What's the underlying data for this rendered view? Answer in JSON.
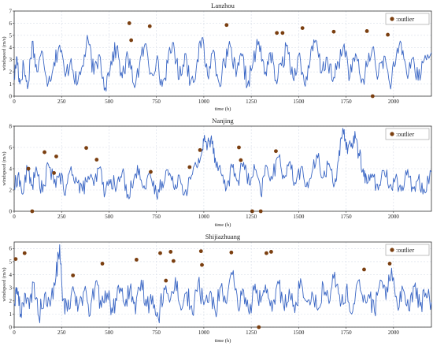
{
  "chart_data": [
    {
      "type": "line",
      "title": "Lanzhou",
      "xlabel": "time (h)",
      "ylabel": "windspeed (m/s)",
      "xlim": [
        0,
        2200
      ],
      "ylim": [
        0,
        7
      ],
      "xticks": [
        0,
        250,
        500,
        750,
        1000,
        1250,
        1500,
        1750,
        2000
      ],
      "yticks": [
        0,
        1,
        2,
        3,
        4,
        5,
        6,
        7
      ],
      "grid": true,
      "legend": {
        "position": "top-right",
        "label": ":outlier"
      },
      "series_color": "#3a66c4",
      "outlier_color": "#7b3f10",
      "keypoints": [
        [
          0,
          1.5
        ],
        [
          15,
          3.2
        ],
        [
          30,
          1.0
        ],
        [
          50,
          2.6
        ],
        [
          70,
          0.6
        ],
        [
          95,
          4.5
        ],
        [
          120,
          2.0
        ],
        [
          150,
          3.6
        ],
        [
          180,
          1.1
        ],
        [
          210,
          2.8
        ],
        [
          240,
          4.2
        ],
        [
          270,
          1.6
        ],
        [
          300,
          3.1
        ],
        [
          330,
          0.9
        ],
        [
          360,
          2.5
        ],
        [
          390,
          4.6
        ],
        [
          420,
          1.8
        ],
        [
          450,
          3.4
        ],
        [
          480,
          0.7
        ],
        [
          510,
          2.9
        ],
        [
          540,
          4.0
        ],
        [
          570,
          1.5
        ],
        [
          600,
          3.3
        ],
        [
          630,
          1.0
        ],
        [
          660,
          2.4
        ],
        [
          690,
          4.3
        ],
        [
          720,
          1.9
        ],
        [
          750,
          3.0
        ],
        [
          780,
          0.8
        ],
        [
          810,
          2.7
        ],
        [
          840,
          4.4
        ],
        [
          870,
          1.4
        ],
        [
          900,
          3.5
        ],
        [
          930,
          1.2
        ],
        [
          960,
          2.3
        ],
        [
          990,
          4.8
        ],
        [
          1020,
          1.7
        ],
        [
          1050,
          3.8
        ],
        [
          1080,
          1.1
        ],
        [
          1110,
          2.6
        ],
        [
          1140,
          4.1
        ],
        [
          1170,
          1.6
        ],
        [
          1200,
          3.3
        ],
        [
          1230,
          0.9
        ],
        [
          1260,
          2.8
        ],
        [
          1290,
          4.5
        ],
        [
          1320,
          1.8
        ],
        [
          1350,
          3.6
        ],
        [
          1380,
          1.3
        ],
        [
          1410,
          2.5
        ],
        [
          1440,
          4.2
        ],
        [
          1470,
          1.5
        ],
        [
          1500,
          3.4
        ],
        [
          1530,
          1.0
        ],
        [
          1560,
          2.9
        ],
        [
          1590,
          4.6
        ],
        [
          1620,
          1.9
        ],
        [
          1650,
          3.2
        ],
        [
          1680,
          1.2
        ],
        [
          1710,
          2.7
        ],
        [
          1740,
          4.3
        ],
        [
          1770,
          1.6
        ],
        [
          1800,
          3.5
        ],
        [
          1830,
          1.1
        ],
        [
          1860,
          2.4
        ],
        [
          1890,
          4.0
        ],
        [
          1920,
          1.7
        ],
        [
          1950,
          3.3
        ],
        [
          1980,
          1.0
        ],
        [
          2010,
          2.6
        ],
        [
          2040,
          4.4
        ],
        [
          2070,
          1.8
        ],
        [
          2100,
          3.1
        ],
        [
          2130,
          1.3
        ],
        [
          2160,
          2.9
        ],
        [
          2200,
          3.6
        ]
      ],
      "outliers": [
        [
          607,
          6.0
        ],
        [
          617,
          4.6
        ],
        [
          715,
          5.75
        ],
        [
          1120,
          5.85
        ],
        [
          1385,
          5.2
        ],
        [
          1415,
          5.2
        ],
        [
          1520,
          5.6
        ],
        [
          1685,
          5.3
        ],
        [
          1860,
          5.35
        ],
        [
          1890,
          0.0
        ],
        [
          1970,
          5.05
        ]
      ]
    },
    {
      "type": "line",
      "title": "Nanjing",
      "xlabel": "time (h)",
      "ylabel": "windspeed (m/s)",
      "xlim": [
        0,
        2200
      ],
      "ylim": [
        0,
        8
      ],
      "xticks": [
        0,
        250,
        500,
        750,
        1000,
        1250,
        1500,
        1750,
        2000
      ],
      "yticks": [
        0,
        2,
        4,
        6,
        8
      ],
      "grid": true,
      "legend": {
        "position": "top-right",
        "label": ":outlier"
      },
      "series_color": "#3a66c4",
      "outlier_color": "#7b3f10",
      "keypoints": [
        [
          0,
          2.2
        ],
        [
          20,
          3.4
        ],
        [
          45,
          1.6
        ],
        [
          70,
          4.0
        ],
        [
          95,
          2.5
        ],
        [
          120,
          3.8
        ],
        [
          150,
          1.8
        ],
        [
          180,
          4.4
        ],
        [
          210,
          2.6
        ],
        [
          240,
          3.6
        ],
        [
          270,
          1.5
        ],
        [
          300,
          4.2
        ],
        [
          330,
          2.8
        ],
        [
          360,
          1.9
        ],
        [
          390,
          3.3
        ],
        [
          420,
          2.4
        ],
        [
          450,
          4.1
        ],
        [
          480,
          1.7
        ],
        [
          510,
          3.0
        ],
        [
          540,
          2.2
        ],
        [
          570,
          3.7
        ],
        [
          600,
          1.6
        ],
        [
          630,
          2.9
        ],
        [
          660,
          4.0
        ],
        [
          690,
          2.1
        ],
        [
          720,
          3.2
        ],
        [
          750,
          1.5
        ],
        [
          780,
          2.8
        ],
        [
          810,
          3.9
        ],
        [
          840,
          2.3
        ],
        [
          870,
          3.4
        ],
        [
          900,
          1.8
        ],
        [
          930,
          3.0
        ],
        [
          960,
          4.3
        ],
        [
          985,
          5.2
        ],
        [
          1000,
          6.6
        ],
        [
          1020,
          6.2
        ],
        [
          1040,
          7.1
        ],
        [
          1060,
          5.0
        ],
        [
          1090,
          3.6
        ],
        [
          1120,
          2.2
        ],
        [
          1150,
          4.1
        ],
        [
          1180,
          2.9
        ],
        [
          1210,
          4.6
        ],
        [
          1240,
          2.5
        ],
        [
          1270,
          3.9
        ],
        [
          1300,
          1.6
        ],
        [
          1330,
          4.3
        ],
        [
          1360,
          3.0
        ],
        [
          1390,
          5.1
        ],
        [
          1420,
          3.4
        ],
        [
          1450,
          4.6
        ],
        [
          1480,
          2.7
        ],
        [
          1510,
          4.0
        ],
        [
          1540,
          2.3
        ],
        [
          1570,
          3.6
        ],
        [
          1600,
          5.0
        ],
        [
          1630,
          3.2
        ],
        [
          1660,
          4.5
        ],
        [
          1690,
          2.6
        ],
        [
          1710,
          4.8
        ],
        [
          1730,
          7.2
        ],
        [
          1745,
          6.8
        ],
        [
          1760,
          5.9
        ],
        [
          1780,
          6.4
        ],
        [
          1800,
          6.9
        ],
        [
          1820,
          5.2
        ],
        [
          1840,
          4.0
        ],
        [
          1860,
          2.6
        ],
        [
          1890,
          3.5
        ],
        [
          1920,
          2.0
        ],
        [
          1950,
          3.8
        ],
        [
          1980,
          2.4
        ],
        [
          2010,
          3.1
        ],
        [
          2040,
          1.9
        ],
        [
          2070,
          3.4
        ],
        [
          2100,
          2.3
        ],
        [
          2130,
          3.0
        ],
        [
          2160,
          2.1
        ],
        [
          2200,
          3.7
        ]
      ],
      "outliers": [
        [
          75,
          4.0
        ],
        [
          95,
          0.0
        ],
        [
          160,
          5.55
        ],
        [
          210,
          3.6
        ],
        [
          222,
          5.15
        ],
        [
          380,
          5.95
        ],
        [
          435,
          4.85
        ],
        [
          720,
          3.7
        ],
        [
          925,
          4.15
        ],
        [
          980,
          5.75
        ],
        [
          1185,
          6.0
        ],
        [
          1195,
          4.8
        ],
        [
          1255,
          0.0
        ],
        [
          1300,
          0.0
        ],
        [
          1380,
          5.65
        ]
      ]
    },
    {
      "type": "line",
      "title": "Shijiazhuang",
      "xlabel": "time (h)",
      "ylabel": "windspeed (m/s)",
      "xlim": [
        0,
        2200
      ],
      "ylim": [
        0,
        6.5
      ],
      "xticks": [
        0,
        250,
        500,
        750,
        1000,
        1250,
        1500,
        1750,
        2000
      ],
      "yticks": [
        0,
        1,
        2,
        3,
        4,
        5,
        6
      ],
      "grid": true,
      "legend": {
        "position": "top-right",
        "label": ":outlier"
      },
      "series_color": "#3a66c4",
      "outlier_color": "#7b3f10",
      "keypoints": [
        [
          0,
          1.8
        ],
        [
          15,
          3.0
        ],
        [
          35,
          1.0
        ],
        [
          55,
          2.6
        ],
        [
          80,
          1.4
        ],
        [
          105,
          3.4
        ],
        [
          130,
          0.8
        ],
        [
          160,
          2.5
        ],
        [
          190,
          1.6
        ],
        [
          220,
          3.8
        ],
        [
          240,
          6.3
        ],
        [
          255,
          2.0
        ],
        [
          280,
          1.2
        ],
        [
          310,
          3.1
        ],
        [
          340,
          1.7
        ],
        [
          370,
          2.8
        ],
        [
          400,
          0.9
        ],
        [
          430,
          3.5
        ],
        [
          460,
          1.5
        ],
        [
          490,
          2.6
        ],
        [
          520,
          1.1
        ],
        [
          550,
          3.2
        ],
        [
          580,
          1.8
        ],
        [
          610,
          2.9
        ],
        [
          640,
          1.0
        ],
        [
          670,
          3.6
        ],
        [
          700,
          1.6
        ],
        [
          730,
          2.4
        ],
        [
          760,
          0.7
        ],
        [
          790,
          3.0
        ],
        [
          820,
          1.9
        ],
        [
          850,
          3.8
        ],
        [
          880,
          1.3
        ],
        [
          910,
          2.7
        ],
        [
          940,
          1.0
        ],
        [
          970,
          3.4
        ],
        [
          1000,
          1.7
        ],
        [
          1030,
          2.5
        ],
        [
          1060,
          1.2
        ],
        [
          1090,
          3.1
        ],
        [
          1120,
          1.8
        ],
        [
          1150,
          4.0
        ],
        [
          1180,
          1.5
        ],
        [
          1210,
          2.8
        ],
        [
          1240,
          1.0
        ],
        [
          1270,
          3.3
        ],
        [
          1300,
          1.9
        ],
        [
          1330,
          2.6
        ],
        [
          1360,
          1.2
        ],
        [
          1390,
          3.5
        ],
        [
          1420,
          1.7
        ],
        [
          1450,
          2.9
        ],
        [
          1480,
          1.1
        ],
        [
          1510,
          3.7
        ],
        [
          1540,
          2.0
        ],
        [
          1570,
          2.7
        ],
        [
          1600,
          1.3
        ],
        [
          1630,
          3.2
        ],
        [
          1660,
          1.8
        ],
        [
          1690,
          4.2
        ],
        [
          1720,
          1.6
        ],
        [
          1750,
          2.8
        ],
        [
          1780,
          1.0
        ],
        [
          1810,
          3.4
        ],
        [
          1840,
          1.9
        ],
        [
          1870,
          2.5
        ],
        [
          1900,
          1.2
        ],
        [
          1930,
          3.6
        ],
        [
          1960,
          2.1
        ],
        [
          1990,
          4.5
        ],
        [
          2020,
          1.7
        ],
        [
          2050,
          2.9
        ],
        [
          2080,
          1.3
        ],
        [
          2110,
          3.1
        ],
        [
          2140,
          1.6
        ],
        [
          2170,
          2.6
        ],
        [
          2200,
          1.9
        ]
      ],
      "outliers": [
        [
          8,
          5.2
        ],
        [
          55,
          5.65
        ],
        [
          310,
          3.95
        ],
        [
          465,
          4.85
        ],
        [
          645,
          5.15
        ],
        [
          770,
          5.65
        ],
        [
          800,
          3.55
        ],
        [
          825,
          5.75
        ],
        [
          840,
          5.05
        ],
        [
          985,
          5.8
        ],
        [
          990,
          4.75
        ],
        [
          1145,
          5.7
        ],
        [
          1290,
          0.0
        ],
        [
          1330,
          5.65
        ],
        [
          1355,
          5.75
        ],
        [
          1845,
          4.4
        ],
        [
          1980,
          4.85
        ]
      ]
    }
  ]
}
